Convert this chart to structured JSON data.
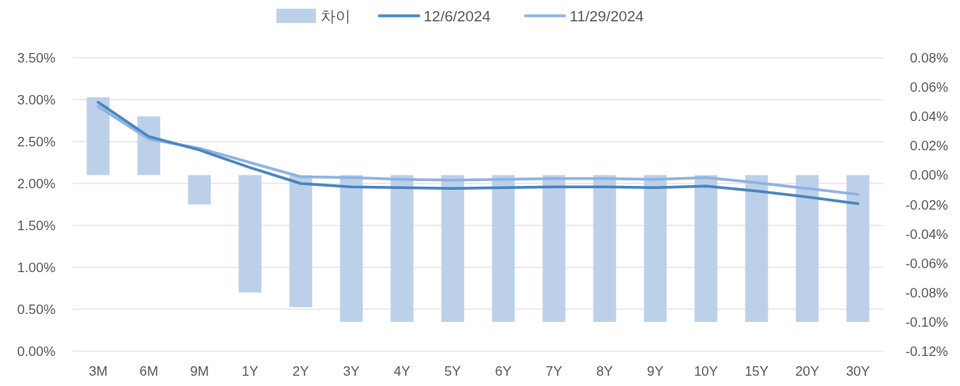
{
  "chart_data": {
    "type": "bar",
    "categories": [
      "3M",
      "6M",
      "9M",
      "1Y",
      "2Y",
      "3Y",
      "4Y",
      "5Y",
      "6Y",
      "7Y",
      "8Y",
      "9Y",
      "10Y",
      "15Y",
      "20Y",
      "30Y"
    ],
    "series": [
      {
        "name": "차이",
        "axis": "y2",
        "color": "#bdd0ea",
        "values": [
          0.053,
          0.04,
          -0.02,
          -0.08,
          -0.09,
          -0.1,
          -0.1,
          -0.1,
          -0.1,
          -0.1,
          -0.1,
          -0.1,
          -0.1,
          -0.1,
          -0.1,
          -0.1
        ]
      },
      {
        "name": "12/6/2024",
        "type": "line",
        "color": "#4a86c0",
        "values": [
          2.97,
          2.56,
          2.4,
          2.19,
          2.0,
          1.96,
          1.95,
          1.94,
          1.95,
          1.96,
          1.96,
          1.95,
          1.97,
          1.91,
          1.84,
          1.76
        ]
      },
      {
        "name": "11/29/2024",
        "type": "line",
        "color": "#8fb4e0",
        "values": [
          2.92,
          2.53,
          2.42,
          2.25,
          2.08,
          2.07,
          2.05,
          2.04,
          2.05,
          2.06,
          2.06,
          2.05,
          2.07,
          2.01,
          1.94,
          1.87
        ]
      }
    ],
    "ylim": [
      0,
      3.5
    ],
    "yticks": [
      {
        "value": 0,
        "label": "0.00%"
      },
      {
        "value": 0.5,
        "label": "0.50%"
      },
      {
        "value": 1,
        "label": "1.00%"
      },
      {
        "value": 1.5,
        "label": "1.50%"
      },
      {
        "value": 2,
        "label": "2.00%"
      },
      {
        "value": 2.5,
        "label": "2.50%"
      },
      {
        "value": 3,
        "label": "3.00%"
      },
      {
        "value": 3.5,
        "label": "3.50%"
      }
    ],
    "y2lim": [
      -0.12,
      0.08
    ],
    "y2ticks": [
      {
        "value": -0.12,
        "label": "-0.12%"
      },
      {
        "value": -0.1,
        "label": "-0.10%"
      },
      {
        "value": -0.08,
        "label": "-0.08%"
      },
      {
        "value": -0.06,
        "label": "-0.06%"
      },
      {
        "value": -0.04,
        "label": "-0.04%"
      },
      {
        "value": -0.02,
        "label": "-0.02%"
      },
      {
        "value": 0,
        "label": "0.00%"
      },
      {
        "value": 0.02,
        "label": "0.02%"
      },
      {
        "value": 0.04,
        "label": "0.04%"
      },
      {
        "value": 0.06,
        "label": "0.06%"
      },
      {
        "value": 0.08,
        "label": "0.08%"
      }
    ],
    "grid": "y",
    "legend": "top",
    "line_style": "solid"
  }
}
